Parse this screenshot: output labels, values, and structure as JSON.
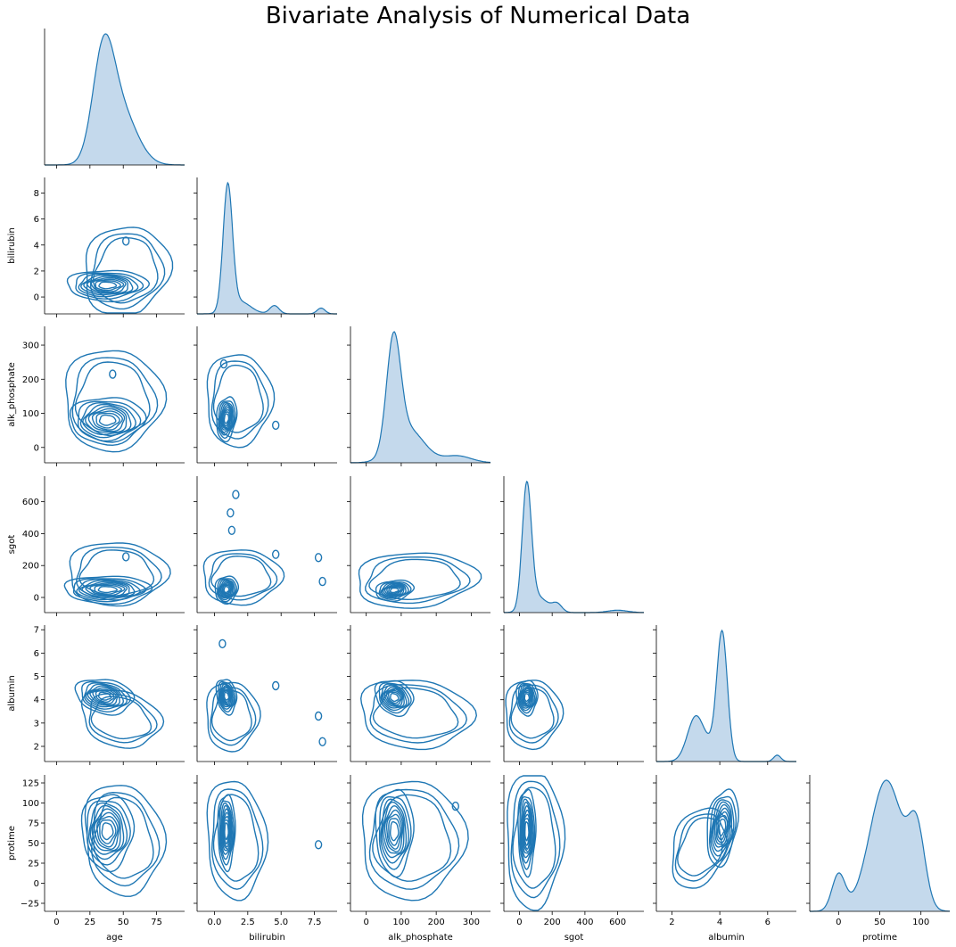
{
  "chart_data": {
    "type": "kde_pairplot",
    "title": "Bivariate Analysis of Numerical Data",
    "variables": [
      "age",
      "bilirubin",
      "alk_phosphate",
      "sgot",
      "albumin",
      "protime"
    ],
    "color": "#1f77b4",
    "fill_color": "#c4d9ec",
    "corner": true,
    "axes": [
      {
        "name": "age",
        "label": "age",
        "lim": [
          -9,
          96
        ],
        "ticks": [
          0,
          25,
          50,
          75
        ],
        "tick_labels": [
          "0",
          "25",
          "50",
          "75"
        ]
      },
      {
        "name": "bilirubin",
        "label": "bilirubin",
        "lim": [
          -1.3,
          9.2
        ],
        "ticks": [
          0,
          2,
          4,
          6,
          8
        ],
        "tick_labels": [
          "0",
          "2",
          "4",
          "6",
          "8"
        ],
        "xticks": [
          0.0,
          2.5,
          5.0,
          7.5
        ],
        "xtick_labels": [
          "0.0",
          "2.5",
          "5.0",
          "7.5"
        ]
      },
      {
        "name": "alk_phosphate",
        "label": "alk_phosphate",
        "lim": [
          -45,
          355
        ],
        "ticks": [
          0,
          100,
          200,
          300
        ],
        "tick_labels": [
          "0",
          "100",
          "200",
          "300"
        ]
      },
      {
        "name": "sgot",
        "label": "sgot",
        "lim": [
          -95,
          760
        ],
        "ticks": [
          0,
          200,
          400,
          600
        ],
        "tick_labels": [
          "0",
          "200",
          "400",
          "600"
        ]
      },
      {
        "name": "albumin",
        "label": "albumin",
        "lim": [
          1.35,
          7.2
        ],
        "ticks": [
          2,
          3,
          4,
          5,
          6,
          7
        ],
        "tick_labels": [
          "2",
          "3",
          "4",
          "5",
          "6",
          "7"
        ],
        "xticks": [
          2,
          4,
          6
        ],
        "xtick_labels": [
          "2",
          "4",
          "6"
        ]
      },
      {
        "name": "protime",
        "label": "protime",
        "lim": [
          -35,
          135
        ],
        "ticks": [
          -25,
          0,
          25,
          50,
          75,
          100,
          125
        ],
        "tick_labels": [
          "−25",
          "0",
          "25",
          "50",
          "75",
          "100",
          "125"
        ],
        "xticks": [
          0,
          50,
          100
        ],
        "xtick_labels": [
          "0",
          "50",
          "100"
        ]
      }
    ],
    "diagonal_kde": [
      {
        "variable": "age",
        "modes": [
          {
            "mean": 35,
            "sd": 8,
            "w": 0.55
          },
          {
            "mean": 48,
            "sd": 12,
            "w": 0.45
          }
        ]
      },
      {
        "variable": "bilirubin",
        "modes": [
          {
            "mean": 1.0,
            "sd": 0.35,
            "w": 0.75
          },
          {
            "mean": 1.9,
            "sd": 0.8,
            "w": 0.17
          },
          {
            "mean": 4.5,
            "sd": 0.35,
            "w": 0.05
          },
          {
            "mean": 8.0,
            "sd": 0.3,
            "w": 0.03
          }
        ]
      },
      {
        "variable": "alk_phosphate",
        "modes": [
          {
            "mean": 78,
            "sd": 20,
            "w": 0.55
          },
          {
            "mean": 120,
            "sd": 45,
            "w": 0.38
          },
          {
            "mean": 260,
            "sd": 40,
            "w": 0.07
          }
        ]
      },
      {
        "variable": "sgot",
        "modes": [
          {
            "mean": 45,
            "sd": 28,
            "w": 0.72
          },
          {
            "mean": 110,
            "sd": 60,
            "w": 0.2
          },
          {
            "mean": 230,
            "sd": 30,
            "w": 0.05
          },
          {
            "mean": 600,
            "sd": 60,
            "w": 0.03
          }
        ]
      },
      {
        "variable": "albumin",
        "modes": [
          {
            "mean": 4.1,
            "sd": 0.22,
            "w": 0.58
          },
          {
            "mean": 3.0,
            "sd": 0.35,
            "w": 0.33
          },
          {
            "mean": 3.7,
            "sd": 0.3,
            "w": 0.07
          },
          {
            "mean": 6.4,
            "sd": 0.15,
            "w": 0.02
          }
        ]
      },
      {
        "variable": "protime",
        "modes": [
          {
            "mean": 58,
            "sd": 20,
            "w": 0.72
          },
          {
            "mean": 95,
            "sd": 10,
            "w": 0.2
          },
          {
            "mean": 0,
            "sd": 8,
            "w": 0.08
          }
        ]
      }
    ],
    "bivariate_kde": [
      {
        "x": "age",
        "y": "bilirubin",
        "components": [
          {
            "mx": 38,
            "my": 0.9,
            "sx": 14,
            "sy": 0.55,
            "r": 0,
            "w": 0.8
          },
          {
            "mx": 52,
            "my": 2.0,
            "sx": 13,
            "sy": 1.4,
            "r": 0.1,
            "w": 0.2
          }
        ],
        "minor_peaks": [
          {
            "x": 52,
            "y": 4.3
          }
        ]
      },
      {
        "x": "age",
        "y": "alk_phosphate",
        "components": [
          {
            "mx": 38,
            "my": 80,
            "sx": 13,
            "sy": 32,
            "r": 0,
            "w": 0.75
          },
          {
            "mx": 42,
            "my": 140,
            "sx": 15,
            "sy": 60,
            "r": 0,
            "w": 0.25
          }
        ],
        "minor_peaks": [
          {
            "x": 42,
            "y": 215
          }
        ]
      },
      {
        "x": "age",
        "y": "sgot",
        "components": [
          {
            "mx": 38,
            "my": 50,
            "sx": 15,
            "sy": 40,
            "r": 0,
            "w": 0.8
          },
          {
            "mx": 45,
            "my": 150,
            "sx": 15,
            "sy": 80,
            "r": 0,
            "w": 0.2
          }
        ],
        "minor_peaks": [
          {
            "x": 52,
            "y": 255
          }
        ]
      },
      {
        "x": "age",
        "y": "albumin",
        "components": [
          {
            "mx": 36,
            "my": 4.15,
            "sx": 10,
            "sy": 0.35,
            "r": -0.2,
            "w": 0.6
          },
          {
            "mx": 48,
            "my": 3.2,
            "sx": 12,
            "sy": 0.5,
            "r": -0.2,
            "w": 0.4
          }
        ],
        "minor_peaks": []
      },
      {
        "x": "age",
        "y": "protime",
        "components": [
          {
            "mx": 38,
            "my": 65,
            "sx": 9,
            "sy": 22,
            "r": 0,
            "w": 0.55
          },
          {
            "mx": 50,
            "my": 55,
            "sx": 12,
            "sy": 28,
            "r": -0.1,
            "w": 0.45
          }
        ],
        "minor_peaks": []
      },
      {
        "x": "bilirubin",
        "y": "alk_phosphate",
        "components": [
          {
            "mx": 0.9,
            "my": 85,
            "sx": 0.35,
            "sy": 30,
            "r": 0.2,
            "w": 0.75
          },
          {
            "mx": 1.8,
            "my": 140,
            "sx": 1.0,
            "sy": 55,
            "r": 0,
            "w": 0.25
          }
        ],
        "minor_peaks": [
          {
            "x": 0.7,
            "y": 245
          },
          {
            "x": 4.6,
            "y": 65
          }
        ]
      },
      {
        "x": "bilirubin",
        "y": "sgot",
        "components": [
          {
            "mx": 0.9,
            "my": 50,
            "sx": 0.4,
            "sy": 40,
            "r": 0.1,
            "w": 0.8
          },
          {
            "mx": 2.0,
            "my": 130,
            "sx": 1.2,
            "sy": 70,
            "r": 0,
            "w": 0.2
          }
        ],
        "minor_peaks": [
          {
            "x": 1.3,
            "y": 420
          },
          {
            "x": 1.2,
            "y": 530
          },
          {
            "x": 1.6,
            "y": 645
          },
          {
            "x": 4.6,
            "y": 270
          },
          {
            "x": 7.8,
            "y": 250
          },
          {
            "x": 8.1,
            "y": 100
          }
        ]
      },
      {
        "x": "bilirubin",
        "y": "albumin",
        "components": [
          {
            "mx": 0.9,
            "my": 4.15,
            "sx": 0.35,
            "sy": 0.35,
            "r": -0.2,
            "w": 0.6
          },
          {
            "mx": 1.3,
            "my": 3.3,
            "sx": 0.8,
            "sy": 0.6,
            "r": 0,
            "w": 0.4
          }
        ],
        "minor_peaks": [
          {
            "x": 0.6,
            "y": 6.4
          },
          {
            "x": 4.6,
            "y": 4.6
          },
          {
            "x": 7.8,
            "y": 3.3
          },
          {
            "x": 8.1,
            "y": 2.2
          }
        ]
      },
      {
        "x": "bilirubin",
        "y": "protime",
        "components": [
          {
            "mx": 0.9,
            "my": 65,
            "sx": 0.3,
            "sy": 22,
            "r": 0,
            "w": 0.6
          },
          {
            "mx": 1.6,
            "my": 55,
            "sx": 0.9,
            "sy": 30,
            "r": -0.1,
            "w": 0.4
          }
        ],
        "minor_peaks": [
          {
            "x": 7.8,
            "y": 48
          }
        ]
      },
      {
        "x": "alk_phosphate",
        "y": "sgot",
        "components": [
          {
            "mx": 80,
            "my": 45,
            "sx": 25,
            "sy": 30,
            "r": 0.2,
            "w": 0.7
          },
          {
            "mx": 140,
            "my": 110,
            "sx": 70,
            "sy": 70,
            "r": 0.1,
            "w": 0.3
          }
        ],
        "minor_peaks": []
      },
      {
        "x": "alk_phosphate",
        "y": "albumin",
        "components": [
          {
            "mx": 80,
            "my": 4.1,
            "sx": 25,
            "sy": 0.35,
            "r": -0.2,
            "w": 0.6
          },
          {
            "mx": 140,
            "my": 3.4,
            "sx": 65,
            "sy": 0.6,
            "r": -0.1,
            "w": 0.4
          }
        ],
        "minor_peaks": []
      },
      {
        "x": "alk_phosphate",
        "y": "protime",
        "components": [
          {
            "mx": 80,
            "my": 65,
            "sx": 25,
            "sy": 25,
            "r": 0,
            "w": 0.6
          },
          {
            "mx": 130,
            "my": 55,
            "sx": 60,
            "sy": 30,
            "r": 0,
            "w": 0.4
          }
        ],
        "minor_peaks": [
          {
            "x": 255,
            "y": 96
          }
        ]
      },
      {
        "x": "sgot",
        "y": "albumin",
        "components": [
          {
            "mx": 45,
            "my": 4.1,
            "sx": 30,
            "sy": 0.35,
            "r": 0,
            "w": 0.6
          },
          {
            "mx": 80,
            "my": 3.4,
            "sx": 70,
            "sy": 0.6,
            "r": 0,
            "w": 0.4
          }
        ],
        "minor_peaks": []
      },
      {
        "x": "sgot",
        "y": "protime",
        "components": [
          {
            "mx": 45,
            "my": 65,
            "sx": 25,
            "sy": 25,
            "r": 0,
            "w": 0.6
          },
          {
            "mx": 90,
            "my": 55,
            "sx": 70,
            "sy": 35,
            "r": 0,
            "w": 0.4
          }
        ],
        "minor_peaks": []
      },
      {
        "x": "albumin",
        "y": "protime",
        "components": [
          {
            "mx": 4.1,
            "my": 70,
            "sx": 0.3,
            "sy": 22,
            "r": 0.3,
            "w": 0.55
          },
          {
            "mx": 3.2,
            "my": 45,
            "sx": 0.5,
            "sy": 20,
            "r": 0.3,
            "w": 0.45
          }
        ],
        "minor_peaks": []
      }
    ]
  }
}
